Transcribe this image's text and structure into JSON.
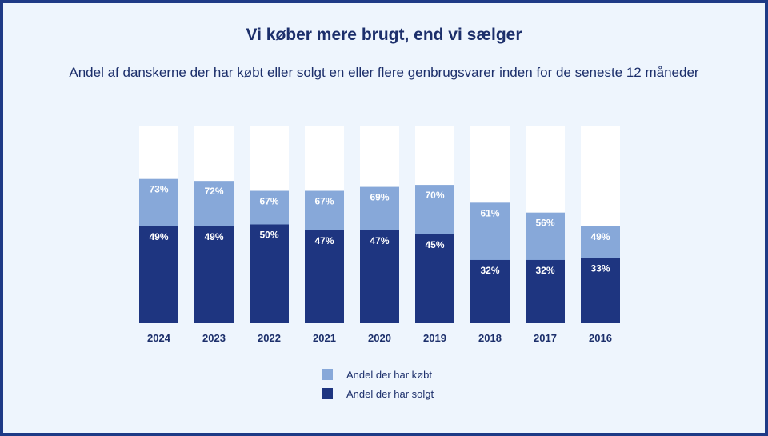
{
  "title": "Vi køber mere brugt, end vi sælger",
  "subtitle": "Andel af danskerne der har købt eller solgt en eller flere genbrugsvarer inden for de seneste 12 måneder",
  "colors": {
    "bought": "#87a8d9",
    "sold": "#1e3580",
    "column_bg": "#ffffff",
    "text": "#1c2f6b"
  },
  "chart_data": {
    "type": "bar",
    "categories": [
      "2024",
      "2023",
      "2022",
      "2021",
      "2020",
      "2019",
      "2018",
      "2017",
      "2016"
    ],
    "series": [
      {
        "name": "Andel der har købt",
        "values": [
          73,
          72,
          67,
          67,
          69,
          70,
          61,
          56,
          49
        ],
        "labels": [
          "73%",
          "72%",
          "67%",
          "67%",
          "69%",
          "70%",
          "61%",
          "56%",
          "49%"
        ]
      },
      {
        "name": "Andel der har solgt",
        "values": [
          49,
          49,
          50,
          47,
          47,
          45,
          32,
          32,
          33
        ],
        "labels": [
          "49%",
          "49%",
          "50%",
          "47%",
          "47%",
          "45%",
          "32%",
          "32%",
          "33%"
        ]
      }
    ],
    "ylim": [
      0,
      100
    ],
    "grid": false,
    "legend_position": "bottom"
  },
  "legend": {
    "bought_label": "Andel der har købt",
    "sold_label": "Andel der har solgt"
  }
}
